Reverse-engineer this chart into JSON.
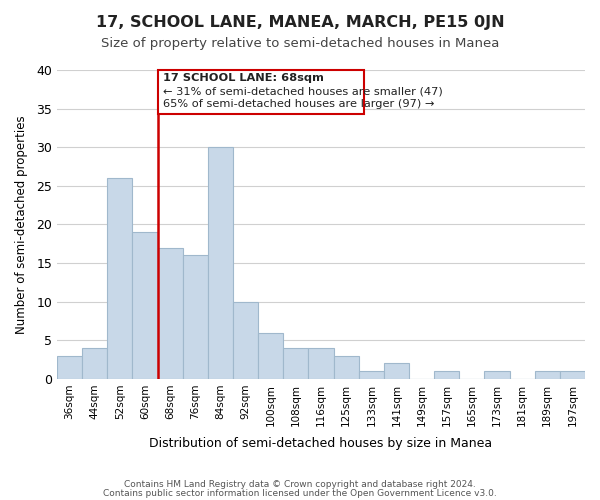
{
  "title": "17, SCHOOL LANE, MANEA, MARCH, PE15 0JN",
  "subtitle": "Size of property relative to semi-detached houses in Manea",
  "xlabel": "Distribution of semi-detached houses by size in Manea",
  "ylabel": "Number of semi-detached properties",
  "bar_color": "#c8d8e8",
  "bar_edge_color": "#a0b8cc",
  "categories": [
    "36sqm",
    "44sqm",
    "52sqm",
    "60sqm",
    "68sqm",
    "76sqm",
    "84sqm",
    "92sqm",
    "100sqm",
    "108sqm",
    "116sqm",
    "125sqm",
    "133sqm",
    "141sqm",
    "149sqm",
    "157sqm",
    "165sqm",
    "173sqm",
    "181sqm",
    "189sqm",
    "197sqm"
  ],
  "values": [
    3,
    4,
    26,
    19,
    17,
    16,
    30,
    10,
    6,
    4,
    4,
    3,
    1,
    2,
    0,
    1,
    0,
    1,
    0,
    1,
    1
  ],
  "highlight_index": 4,
  "highlight_color": "#cc0000",
  "annotation_line1": "17 SCHOOL LANE: 68sqm",
  "annotation_line2": "← 31% of semi-detached houses are smaller (47)",
  "annotation_line3": "65% of semi-detached houses are larger (97) →",
  "ylim": [
    0,
    40
  ],
  "yticks": [
    0,
    5,
    10,
    15,
    20,
    25,
    30,
    35,
    40
  ],
  "footer_line1": "Contains HM Land Registry data © Crown copyright and database right 2024.",
  "footer_line2": "Contains public sector information licensed under the Open Government Licence v3.0.",
  "background_color": "#ffffff",
  "grid_color": "#d0d0d0"
}
